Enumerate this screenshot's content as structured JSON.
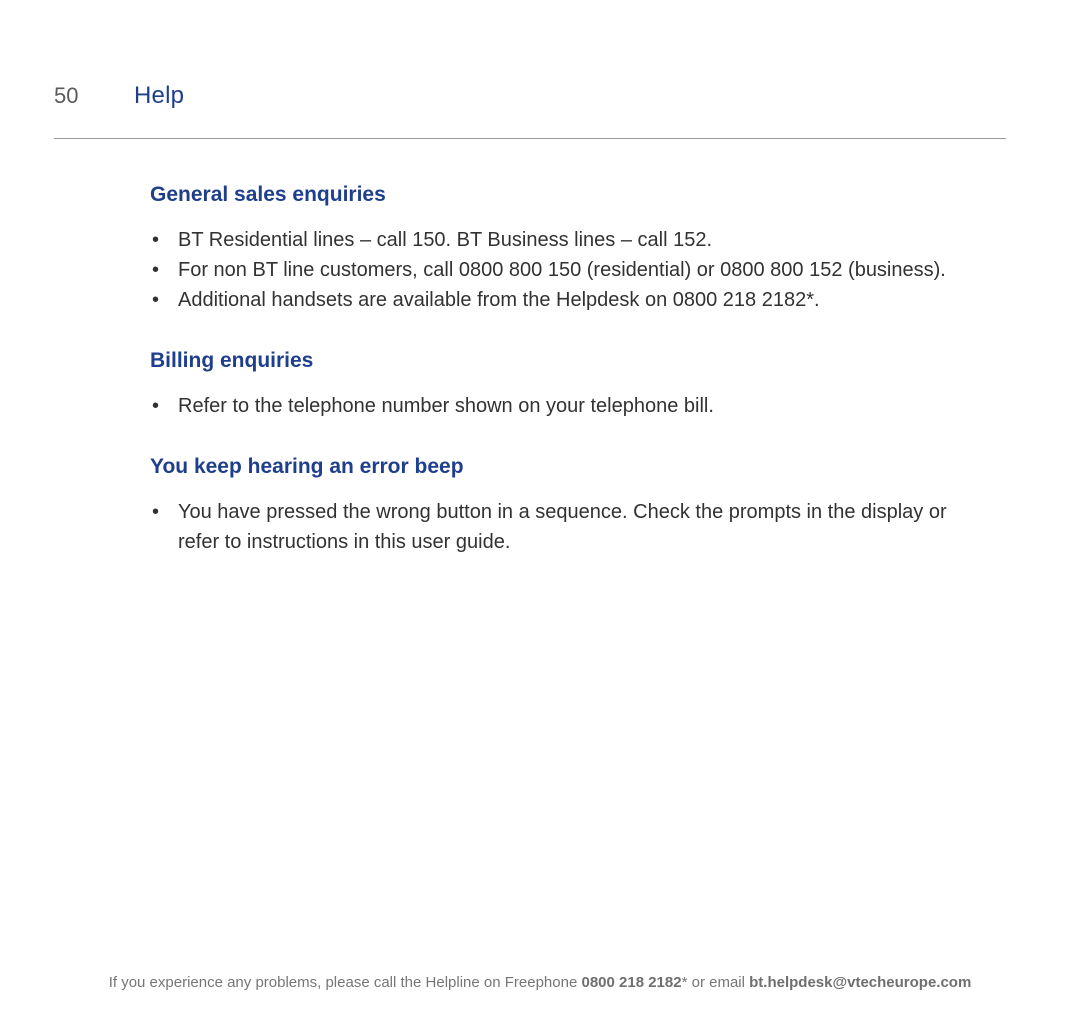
{
  "header": {
    "page_number": "50",
    "title": "Help"
  },
  "colors": {
    "heading": "#1f3f8c",
    "body_text": "#323232",
    "footer_text": "#767676",
    "rule": "#9a9a9a",
    "background": "#ffffff"
  },
  "typography": {
    "heading_fontsize_pt": 16,
    "body_fontsize_pt": 15,
    "footer_fontsize_pt": 11,
    "font_family": "Segoe UI / Helvetica Neue / Arial"
  },
  "sections": [
    {
      "heading": "General sales enquiries",
      "items": [
        "BT Residential lines – call 150. BT Business lines – call 152.",
        "For non BT line customers, call 0800 800 150 (residential) or 0800 800 152 (business).",
        "Additional handsets are available from the Helpdesk on 0800 218 2182*."
      ]
    },
    {
      "heading": "Billing enquiries",
      "items": [
        "Refer to the telephone number shown on your telephone bill."
      ]
    },
    {
      "heading": "You keep hearing an error beep",
      "items": [
        "You have pressed the wrong button in a sequence. Check the prompts in the display or refer to instructions in this user guide."
      ]
    }
  ],
  "footer": {
    "prefix": "If you experience any problems, please call the Helpline on Freephone ",
    "phone": "0800 218 2182",
    "mid": "* or email ",
    "email": "bt.helpdesk@vtecheurope.com"
  }
}
